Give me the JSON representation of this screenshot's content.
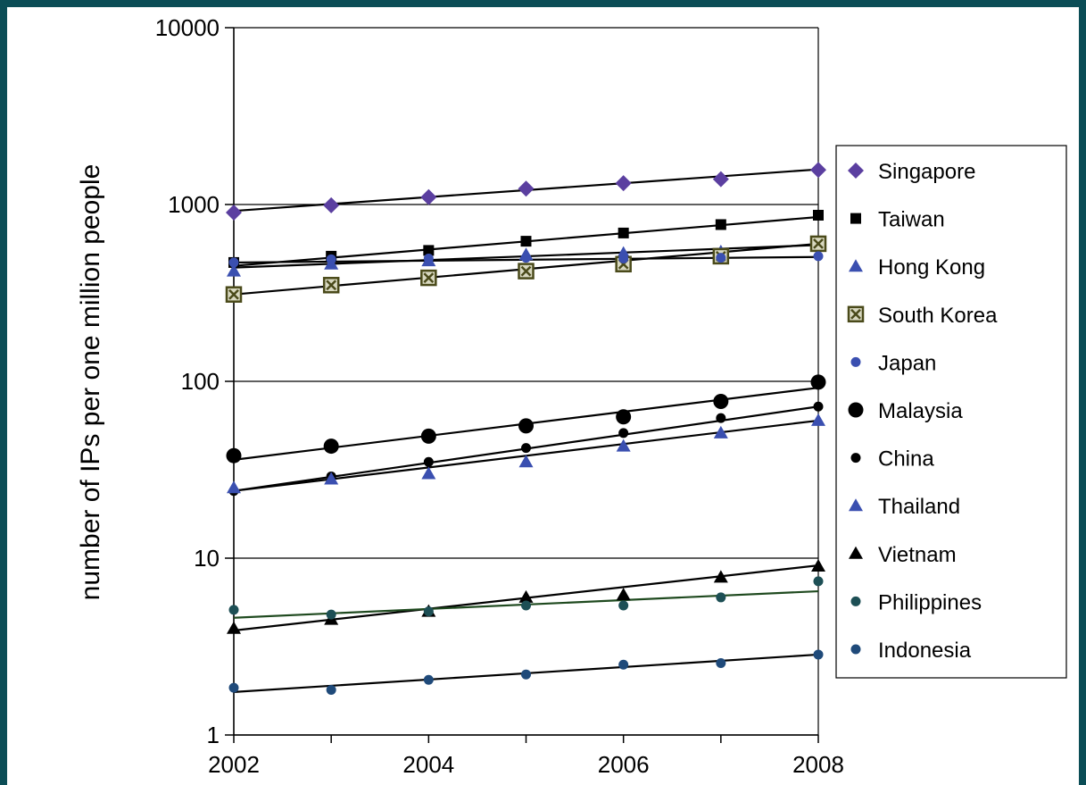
{
  "chart_data": {
    "type": "scatter",
    "ylabel": "number of IPs per one million people",
    "xlabel": "",
    "y_scale": "log",
    "ylim": [
      1,
      10000
    ],
    "xlim": [
      2002,
      2008
    ],
    "x_ticks": [
      "2002",
      "2004",
      "2006",
      "2008"
    ],
    "y_ticks": [
      "1",
      "10",
      "100",
      "1000",
      "10000"
    ],
    "x": [
      2002,
      2003,
      2004,
      2005,
      2006,
      2007,
      2008
    ],
    "grid": "horizontal",
    "legend_position": "right",
    "series": [
      {
        "name": "Singapore",
        "marker": "diamond",
        "color": "#5b3fa0",
        "values": [
          900,
          990,
          1100,
          1230,
          1320,
          1390,
          1570
        ],
        "trend": [
          920,
          1580
        ]
      },
      {
        "name": "Taiwan",
        "marker": "square",
        "color": "#000000",
        "values": [
          470,
          510,
          550,
          620,
          690,
          770,
          870
        ],
        "trend": [
          450,
          850
        ]
      },
      {
        "name": "Hong Kong",
        "marker": "triangle",
        "color": "#3a4fb0",
        "values": [
          420,
          460,
          480,
          520,
          530,
          540,
          580
        ],
        "trend": [
          440,
          590
        ]
      },
      {
        "name": "South Korea",
        "marker": "box-x",
        "color": "#4a4a1a",
        "values": [
          310,
          350,
          385,
          420,
          460,
          510,
          600
        ],
        "trend": [
          310,
          600
        ]
      },
      {
        "name": "Japan",
        "marker": "circle-small",
        "color": "#3a4fb0",
        "values": [
          470,
          490,
          495,
          500,
          495,
          500,
          510
        ],
        "trend": [
          470,
          505
        ]
      },
      {
        "name": "Malaysia",
        "marker": "circle-large",
        "color": "#000000",
        "values": [
          38,
          43,
          49,
          56,
          63,
          77,
          99
        ],
        "trend": [
          36,
          92
        ]
      },
      {
        "name": "China",
        "marker": "circle-small",
        "color": "#000000",
        "values": [
          24,
          29,
          35,
          42,
          51,
          62,
          72
        ],
        "trend": [
          24,
          72
        ]
      },
      {
        "name": "Thailand",
        "marker": "triangle",
        "color": "#3a4fb0",
        "values": [
          25,
          28,
          30,
          35,
          43,
          51,
          60
        ],
        "trend": [
          24,
          60
        ]
      },
      {
        "name": "Vietnam",
        "marker": "triangle",
        "color": "#000000",
        "values": [
          4.0,
          4.5,
          5.0,
          6.0,
          6.2,
          7.8,
          9.0
        ],
        "trend": [
          3.9,
          9.1
        ]
      },
      {
        "name": "Philippines",
        "marker": "circle-small",
        "color": "#1d4f55",
        "values": [
          5.1,
          4.8,
          5.0,
          5.4,
          5.4,
          6.0,
          7.4
        ],
        "trend": [
          4.6,
          6.5
        ],
        "trend_color": "#1f4a1f"
      },
      {
        "name": "Indonesia",
        "marker": "circle-small",
        "color": "#1f4a7a",
        "values": [
          1.85,
          1.8,
          2.05,
          2.2,
          2.5,
          2.55,
          2.85
        ],
        "trend": [
          1.75,
          2.85
        ]
      }
    ]
  }
}
